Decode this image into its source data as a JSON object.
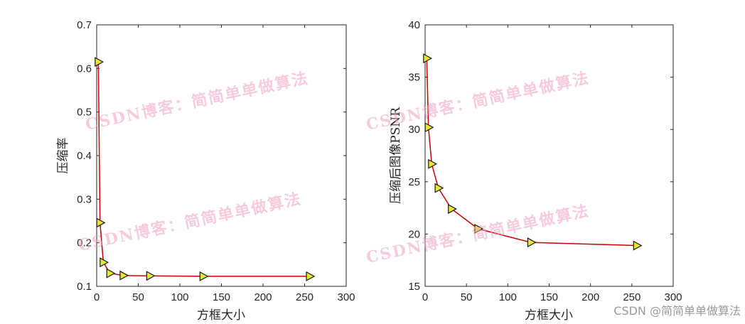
{
  "chart_data": [
    {
      "type": "line",
      "xlabel": "方框大小",
      "ylabel": "压缩率",
      "xlim": [
        0,
        300
      ],
      "ylim": [
        0.1,
        0.7
      ],
      "xticks": [
        "0",
        "50",
        "100",
        "150",
        "200",
        "250",
        "300"
      ],
      "yticks": [
        "0.1",
        "0.2",
        "0.3",
        "0.4",
        "0.5",
        "0.6",
        "0.7"
      ],
      "marker": "right-pointing triangle",
      "line_color": "#cc0000",
      "marker_color": "#e6e62e",
      "grid": false,
      "x": [
        2,
        4,
        8,
        16,
        32,
        64,
        128,
        256
      ],
      "y": [
        0.615,
        0.246,
        0.155,
        0.13,
        0.125,
        0.124,
        0.123,
        0.123
      ]
    },
    {
      "type": "line",
      "xlabel": "方框大小",
      "ylabel": "压缩后图像PSNR",
      "xlim": [
        0,
        300
      ],
      "ylim": [
        15,
        40
      ],
      "xticks": [
        "0",
        "50",
        "100",
        "150",
        "200",
        "250",
        "300"
      ],
      "yticks": [
        "15",
        "20",
        "25",
        "30",
        "35",
        "40"
      ],
      "marker": "right-pointing triangle",
      "line_color": "#cc0000",
      "marker_color": "#e6e62e",
      "grid": false,
      "x": [
        2,
        4,
        8,
        16,
        32,
        64,
        128,
        256
      ],
      "y": [
        36.8,
        30.2,
        26.7,
        24.4,
        22.4,
        20.5,
        19.2,
        18.9
      ]
    }
  ],
  "watermark": "CSDN博客：简简单单做算法",
  "footer": "CSDN @简简单单做算法"
}
